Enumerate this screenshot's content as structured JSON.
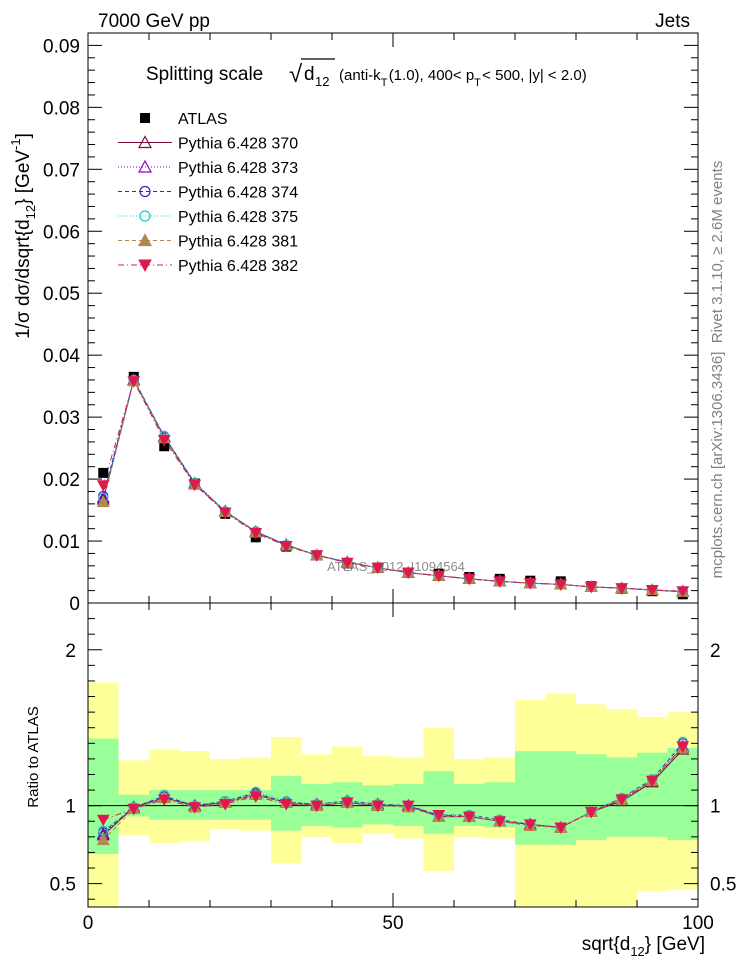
{
  "header": {
    "left": "7000 GeV pp",
    "right": "Jets"
  },
  "side_labels": {
    "rivet": "Rivet 3.1.10, ≥ 2.6M events",
    "mcplots": "mcplots.cern.ch [arXiv:1306.3436]"
  },
  "watermark": "ATLAS_2012_I1094564",
  "colors": {
    "band_stat": "#99ff99",
    "band_total": "#ffff99",
    "data": "#000000"
  },
  "chart_data": [
    {
      "type": "scatter",
      "title": {
        "main": "Splitting scale",
        "sqrt_symbol": "√",
        "var": "d",
        "var_sub": "12",
        "cuts": [
          {
            "t": "(anti-k",
            "sub": "T"
          },
          {
            "t": "(1.0), 400< p",
            "sub": "T"
          },
          {
            "t": " < 500, |y| < 2.0)",
            "sub": ""
          }
        ]
      },
      "ylabel": {
        "pre": "1/σ dσ/dsqrt{d",
        "sub": "12",
        "post": "} [GeV",
        "sup": "-1",
        "end": "]"
      },
      "xlim": [
        0,
        100
      ],
      "ylim": [
        0,
        0.092
      ],
      "yticks": [
        0,
        0.01,
        0.02,
        0.03,
        0.04,
        0.05,
        0.06,
        0.07,
        0.08,
        0.09
      ],
      "ytick_labels": [
        "0",
        "0.01",
        "0.02",
        "0.03",
        "0.04",
        "0.05",
        "0.06",
        "0.07",
        "0.08",
        "0.09"
      ],
      "x": [
        2.5,
        7.5,
        12.5,
        17.5,
        22.5,
        27.5,
        32.5,
        37.5,
        42.5,
        47.5,
        52.5,
        57.5,
        62.5,
        67.5,
        72.5,
        77.5,
        82.5,
        87.5,
        92.5,
        97.5
      ],
      "series": [
        {
          "name": "ATLAS",
          "marker": "square",
          "color": "#000000",
          "line": "none",
          "values": [
            0.021,
            0.0365,
            0.0253,
            0.0193,
            0.0144,
            0.0106,
            0.0091,
            0.0077,
            0.0064,
            0.0057,
            0.0049,
            0.0047,
            0.0042,
            0.0039,
            0.0036,
            0.0035,
            0.0027,
            0.0023,
            0.0019,
            0.0014
          ]
        },
        {
          "name": "Pythia 6.428 370",
          "marker": "triangle-open",
          "color": "#7b0b3e",
          "line": "solid",
          "values": [
            0.0167,
            0.036,
            0.0268,
            0.0193,
            0.0148,
            0.0115,
            0.0094,
            0.0077,
            0.0066,
            0.0057,
            0.0049,
            0.0044,
            0.0039,
            0.0035,
            0.0032,
            0.003,
            0.0026,
            0.0024,
            0.0021,
            0.0018
          ]
        },
        {
          "name": "Pythia 6.428 373",
          "marker": "triangle-open",
          "color": "#8b00c8",
          "line": "dotted",
          "values": [
            0.017,
            0.036,
            0.0268,
            0.0193,
            0.0148,
            0.0115,
            0.0094,
            0.0077,
            0.0066,
            0.0057,
            0.0049,
            0.0044,
            0.0039,
            0.0035,
            0.0032,
            0.003,
            0.0026,
            0.0024,
            0.0021,
            0.0019
          ]
        },
        {
          "name": "Pythia 6.428 374",
          "marker": "circle-open",
          "color": "#2b2bc4",
          "line": "dashed",
          "values": [
            0.0173,
            0.0361,
            0.0269,
            0.0194,
            0.0148,
            0.0115,
            0.0093,
            0.0077,
            0.0066,
            0.0057,
            0.0049,
            0.0044,
            0.0039,
            0.0035,
            0.0032,
            0.003,
            0.0026,
            0.0024,
            0.0021,
            0.0019
          ]
        },
        {
          "name": "Pythia 6.428 375",
          "marker": "circle-open",
          "color": "#22c9c4",
          "line": "dotted",
          "values": [
            0.017,
            0.036,
            0.027,
            0.0194,
            0.0148,
            0.0116,
            0.0094,
            0.0078,
            0.0066,
            0.0057,
            0.0049,
            0.0044,
            0.0039,
            0.0035,
            0.0032,
            0.003,
            0.0026,
            0.0024,
            0.0021,
            0.0019
          ]
        },
        {
          "name": "Pythia 6.428 381",
          "marker": "triangle-filled",
          "color": "#b08a4a",
          "line": "dashed",
          "values": [
            0.0163,
            0.0358,
            0.0266,
            0.0191,
            0.0147,
            0.0114,
            0.0093,
            0.0077,
            0.0065,
            0.0057,
            0.0049,
            0.0044,
            0.0039,
            0.0035,
            0.0032,
            0.003,
            0.0026,
            0.0024,
            0.0021,
            0.0018
          ]
        },
        {
          "name": "Pythia 6.428 382",
          "marker": "triangle-down-filled",
          "color": "#e0194d",
          "line": "dashdot",
          "values": [
            0.019,
            0.0358,
            0.0263,
            0.0191,
            0.0146,
            0.0113,
            0.0092,
            0.0077,
            0.0065,
            0.0057,
            0.0049,
            0.0044,
            0.0039,
            0.0035,
            0.0032,
            0.003,
            0.0026,
            0.0024,
            0.0021,
            0.0019
          ]
        }
      ]
    },
    {
      "type": "scatter",
      "ylabel": "Ratio to ATLAS",
      "xlabel": {
        "pre": "sqrt{d",
        "sub": "12",
        "post": "} [GeV]"
      },
      "xlim": [
        0,
        100
      ],
      "ylim": [
        0.35,
        2.3
      ],
      "xticks": [
        0,
        50,
        100
      ],
      "xtick_labels": [
        "0",
        "50",
        "100"
      ],
      "yticks": [
        0.5,
        1,
        2
      ],
      "ytick_labels": [
        "0.5",
        "1",
        "2"
      ],
      "bins": [
        [
          0,
          5
        ],
        [
          5,
          10
        ],
        [
          10,
          15
        ],
        [
          15,
          20
        ],
        [
          20,
          25
        ],
        [
          25,
          30
        ],
        [
          30,
          35
        ],
        [
          35,
          40
        ],
        [
          40,
          45
        ],
        [
          45,
          50
        ],
        [
          50,
          55
        ],
        [
          55,
          60
        ],
        [
          60,
          65
        ],
        [
          65,
          70
        ],
        [
          70,
          75
        ],
        [
          75,
          80
        ],
        [
          80,
          85
        ],
        [
          85,
          90
        ],
        [
          90,
          95
        ],
        [
          95,
          100
        ]
      ],
      "band_stat": [
        [
          0.69,
          1.43
        ],
        [
          0.93,
          1.07
        ],
        [
          0.91,
          1.1
        ],
        [
          0.91,
          1.1
        ],
        [
          0.91,
          1.1
        ],
        [
          0.91,
          1.1
        ],
        [
          0.84,
          1.19
        ],
        [
          0.87,
          1.14
        ],
        [
          0.86,
          1.15
        ],
        [
          0.88,
          1.13
        ],
        [
          0.87,
          1.14
        ],
        [
          0.82,
          1.22
        ],
        [
          0.87,
          1.14
        ],
        [
          0.86,
          1.15
        ],
        [
          0.75,
          1.35
        ],
        [
          0.75,
          1.35
        ],
        [
          0.78,
          1.33
        ],
        [
          0.8,
          1.31
        ],
        [
          0.8,
          1.34
        ],
        [
          0.78,
          1.37
        ]
      ],
      "band_total": [
        [
          0.35,
          1.79
        ],
        [
          0.81,
          1.29
        ],
        [
          0.76,
          1.36
        ],
        [
          0.77,
          1.35
        ],
        [
          0.85,
          1.3
        ],
        [
          0.84,
          1.31
        ],
        [
          0.63,
          1.44
        ],
        [
          0.8,
          1.33
        ],
        [
          0.76,
          1.38
        ],
        [
          0.82,
          1.32
        ],
        [
          0.79,
          1.31
        ],
        [
          0.58,
          1.5
        ],
        [
          0.8,
          1.3
        ],
        [
          0.79,
          1.31
        ],
        [
          0.35,
          1.68
        ],
        [
          0.35,
          1.72
        ],
        [
          0.35,
          1.65
        ],
        [
          0.35,
          1.62
        ],
        [
          0.45,
          1.57
        ],
        [
          0.46,
          1.6
        ]
      ],
      "series": [
        {
          "name": "Pythia 6.428 370",
          "values": [
            0.81,
            0.99,
            1.05,
            1.0,
            1.02,
            1.07,
            1.02,
            1.0,
            1.02,
            1.0,
            1.0,
            0.93,
            0.93,
            0.9,
            0.88,
            0.86,
            0.96,
            1.03,
            1.15,
            1.36
          ]
        },
        {
          "name": "Pythia 6.428 373",
          "values": [
            0.82,
            0.99,
            1.05,
            1.0,
            1.02,
            1.08,
            1.02,
            1.01,
            1.03,
            1.01,
            1.0,
            0.93,
            0.93,
            0.9,
            0.88,
            0.86,
            0.96,
            1.04,
            1.16,
            1.38
          ]
        },
        {
          "name": "Pythia 6.428 374",
          "values": [
            0.83,
            0.99,
            1.06,
            1.0,
            1.03,
            1.08,
            1.02,
            1.01,
            1.03,
            1.01,
            1.0,
            0.94,
            0.94,
            0.91,
            0.88,
            0.86,
            0.96,
            1.05,
            1.17,
            1.4
          ]
        },
        {
          "name": "Pythia 6.428 375",
          "values": [
            0.84,
            0.99,
            1.07,
            1.0,
            1.03,
            1.09,
            1.03,
            1.01,
            1.03,
            1.01,
            1.0,
            0.94,
            0.94,
            0.91,
            0.88,
            0.86,
            0.96,
            1.05,
            1.17,
            1.41
          ]
        },
        {
          "name": "Pythia 6.428 381",
          "values": [
            0.78,
            0.98,
            1.05,
            0.99,
            1.02,
            1.07,
            1.02,
            1.0,
            1.02,
            1.0,
            0.99,
            0.93,
            0.93,
            0.9,
            0.87,
            0.86,
            0.96,
            1.04,
            1.16,
            1.37
          ]
        },
        {
          "name": "Pythia 6.428 382",
          "values": [
            0.91,
            0.98,
            1.04,
            0.99,
            1.01,
            1.06,
            1.01,
            1.0,
            1.02,
            1.0,
            1.0,
            0.94,
            0.93,
            0.9,
            0.88,
            0.86,
            0.96,
            1.04,
            1.16,
            1.38
          ]
        }
      ]
    }
  ]
}
